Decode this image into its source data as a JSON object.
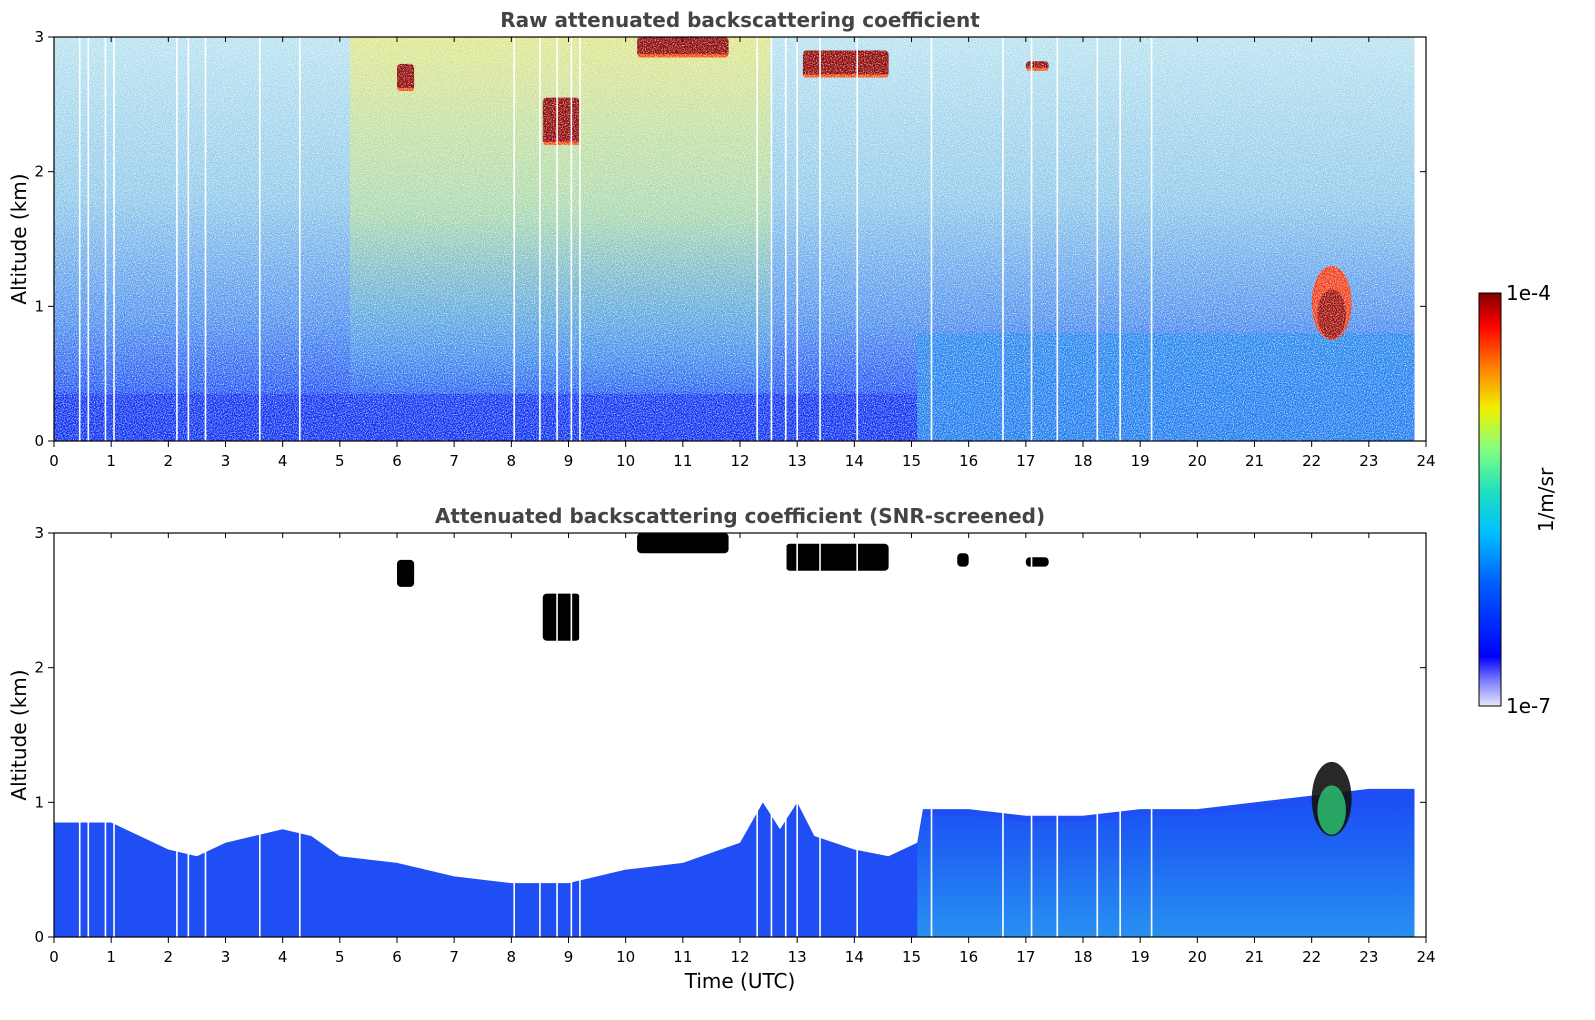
{
  "chart_data": [
    {
      "type": "heatmap",
      "title": "Raw attenuated backscattering coefficient",
      "xlabel": "",
      "ylabel": "Altitude (km)",
      "xlim": [
        0,
        24
      ],
      "ylim": [
        0,
        3
      ],
      "x_ticks": [
        "0",
        "1",
        "2",
        "3",
        "4",
        "5",
        "6",
        "7",
        "8",
        "9",
        "10",
        "11",
        "12",
        "13",
        "14",
        "15",
        "16",
        "17",
        "18",
        "19",
        "20",
        "21",
        "22",
        "23",
        "24"
      ],
      "y_ticks": [
        "0",
        "1",
        "2",
        "3"
      ],
      "data_end_hour": 23.8,
      "noise_floor_km": 0.4,
      "gap_hours": [
        0.45,
        0.6,
        0.9,
        1.05,
        2.15,
        2.35,
        2.65,
        3.6,
        4.3,
        8.05,
        8.5,
        8.8,
        9.05,
        9.2,
        12.3,
        12.55,
        12.8,
        13.0,
        13.4,
        14.05,
        15.35,
        16.6,
        17.1,
        17.55,
        18.25,
        18.65,
        19.2
      ],
      "features": [
        {
          "kind": "boundary_layer",
          "t_start": 0,
          "t_end": 15.1,
          "top_km": 0.35,
          "level": "low"
        },
        {
          "kind": "boundary_layer",
          "t_start": 15.1,
          "t_end": 23.8,
          "top_km": 0.8,
          "level": "medium"
        },
        {
          "kind": "cloud",
          "t_start": 6.0,
          "t_end": 6.3,
          "alt_low_km": 2.6,
          "alt_high_km": 2.8
        },
        {
          "kind": "cloud",
          "t_start": 8.55,
          "t_end": 9.2,
          "alt_low_km": 2.2,
          "alt_high_km": 2.55
        },
        {
          "kind": "cloud",
          "t_start": 10.2,
          "t_end": 11.8,
          "alt_low_km": 2.85,
          "alt_high_km": 3.0
        },
        {
          "kind": "cloud",
          "t_start": 13.1,
          "t_end": 14.6,
          "alt_low_km": 2.7,
          "alt_high_km": 2.9
        },
        {
          "kind": "cloud",
          "t_start": 17.0,
          "t_end": 17.4,
          "alt_low_km": 2.75,
          "alt_high_km": 2.82
        },
        {
          "kind": "low_cloud",
          "t_start": 22.0,
          "t_end": 22.7,
          "alt_low_km": 0.75,
          "alt_high_km": 1.3
        }
      ]
    },
    {
      "type": "heatmap",
      "title": "Attenuated backscattering coefficient (SNR-screened)",
      "xlabel": "Time (UTC)",
      "ylabel": "Altitude (km)",
      "xlim": [
        0,
        24
      ],
      "ylim": [
        0,
        3
      ],
      "x_ticks": [
        "0",
        "1",
        "2",
        "3",
        "4",
        "5",
        "6",
        "7",
        "8",
        "9",
        "10",
        "11",
        "12",
        "13",
        "14",
        "15",
        "16",
        "17",
        "18",
        "19",
        "20",
        "21",
        "22",
        "23",
        "24"
      ],
      "y_ticks": [
        "0",
        "1",
        "2",
        "3"
      ],
      "screened_top_km": [
        [
          0,
          0.85
        ],
        [
          1,
          0.85
        ],
        [
          2,
          0.65
        ],
        [
          2.5,
          0.6
        ],
        [
          3,
          0.7
        ],
        [
          4,
          0.8
        ],
        [
          4.5,
          0.75
        ],
        [
          5,
          0.6
        ],
        [
          6,
          0.55
        ],
        [
          7,
          0.45
        ],
        [
          8,
          0.4
        ],
        [
          9,
          0.4
        ],
        [
          10,
          0.5
        ],
        [
          11,
          0.55
        ],
        [
          12,
          0.7
        ],
        [
          12.4,
          1.0
        ],
        [
          12.7,
          0.8
        ],
        [
          13.0,
          1.0
        ],
        [
          13.3,
          0.75
        ],
        [
          14,
          0.65
        ],
        [
          14.6,
          0.6
        ],
        [
          15.1,
          0.7
        ],
        [
          15.2,
          0.95
        ],
        [
          16,
          0.95
        ],
        [
          17,
          0.9
        ],
        [
          18,
          0.9
        ],
        [
          19,
          0.95
        ],
        [
          20,
          0.95
        ],
        [
          21,
          1.0
        ],
        [
          22,
          1.05
        ],
        [
          23,
          1.1
        ],
        [
          23.8,
          1.1
        ]
      ],
      "features": [
        {
          "kind": "cloud",
          "t_start": 6.0,
          "t_end": 6.3,
          "alt_low_km": 2.6,
          "alt_high_km": 2.8
        },
        {
          "kind": "cloud",
          "t_start": 8.55,
          "t_end": 9.2,
          "alt_low_km": 2.2,
          "alt_high_km": 2.55
        },
        {
          "kind": "cloud",
          "t_start": 10.2,
          "t_end": 11.8,
          "alt_low_km": 2.85,
          "alt_high_km": 3.0
        },
        {
          "kind": "cloud",
          "t_start": 12.8,
          "t_end": 14.6,
          "alt_low_km": 2.72,
          "alt_high_km": 2.92
        },
        {
          "kind": "cloud",
          "t_start": 15.8,
          "t_end": 16.0,
          "alt_low_km": 2.75,
          "alt_high_km": 2.85
        },
        {
          "kind": "cloud",
          "t_start": 17.0,
          "t_end": 17.4,
          "alt_low_km": 2.75,
          "alt_high_km": 2.82
        },
        {
          "kind": "low_cloud",
          "t_start": 22.0,
          "t_end": 22.7,
          "alt_low_km": 0.75,
          "alt_high_km": 1.3
        }
      ]
    }
  ],
  "colorbar": {
    "label": "1/m/sr",
    "max_label": "1e-4",
    "min_label": "1e-7",
    "scale": "log",
    "colormap": "jet",
    "cloud_color": "#8b0000",
    "screened_cloud_color": "#000000",
    "background_color": "#ffffff"
  }
}
